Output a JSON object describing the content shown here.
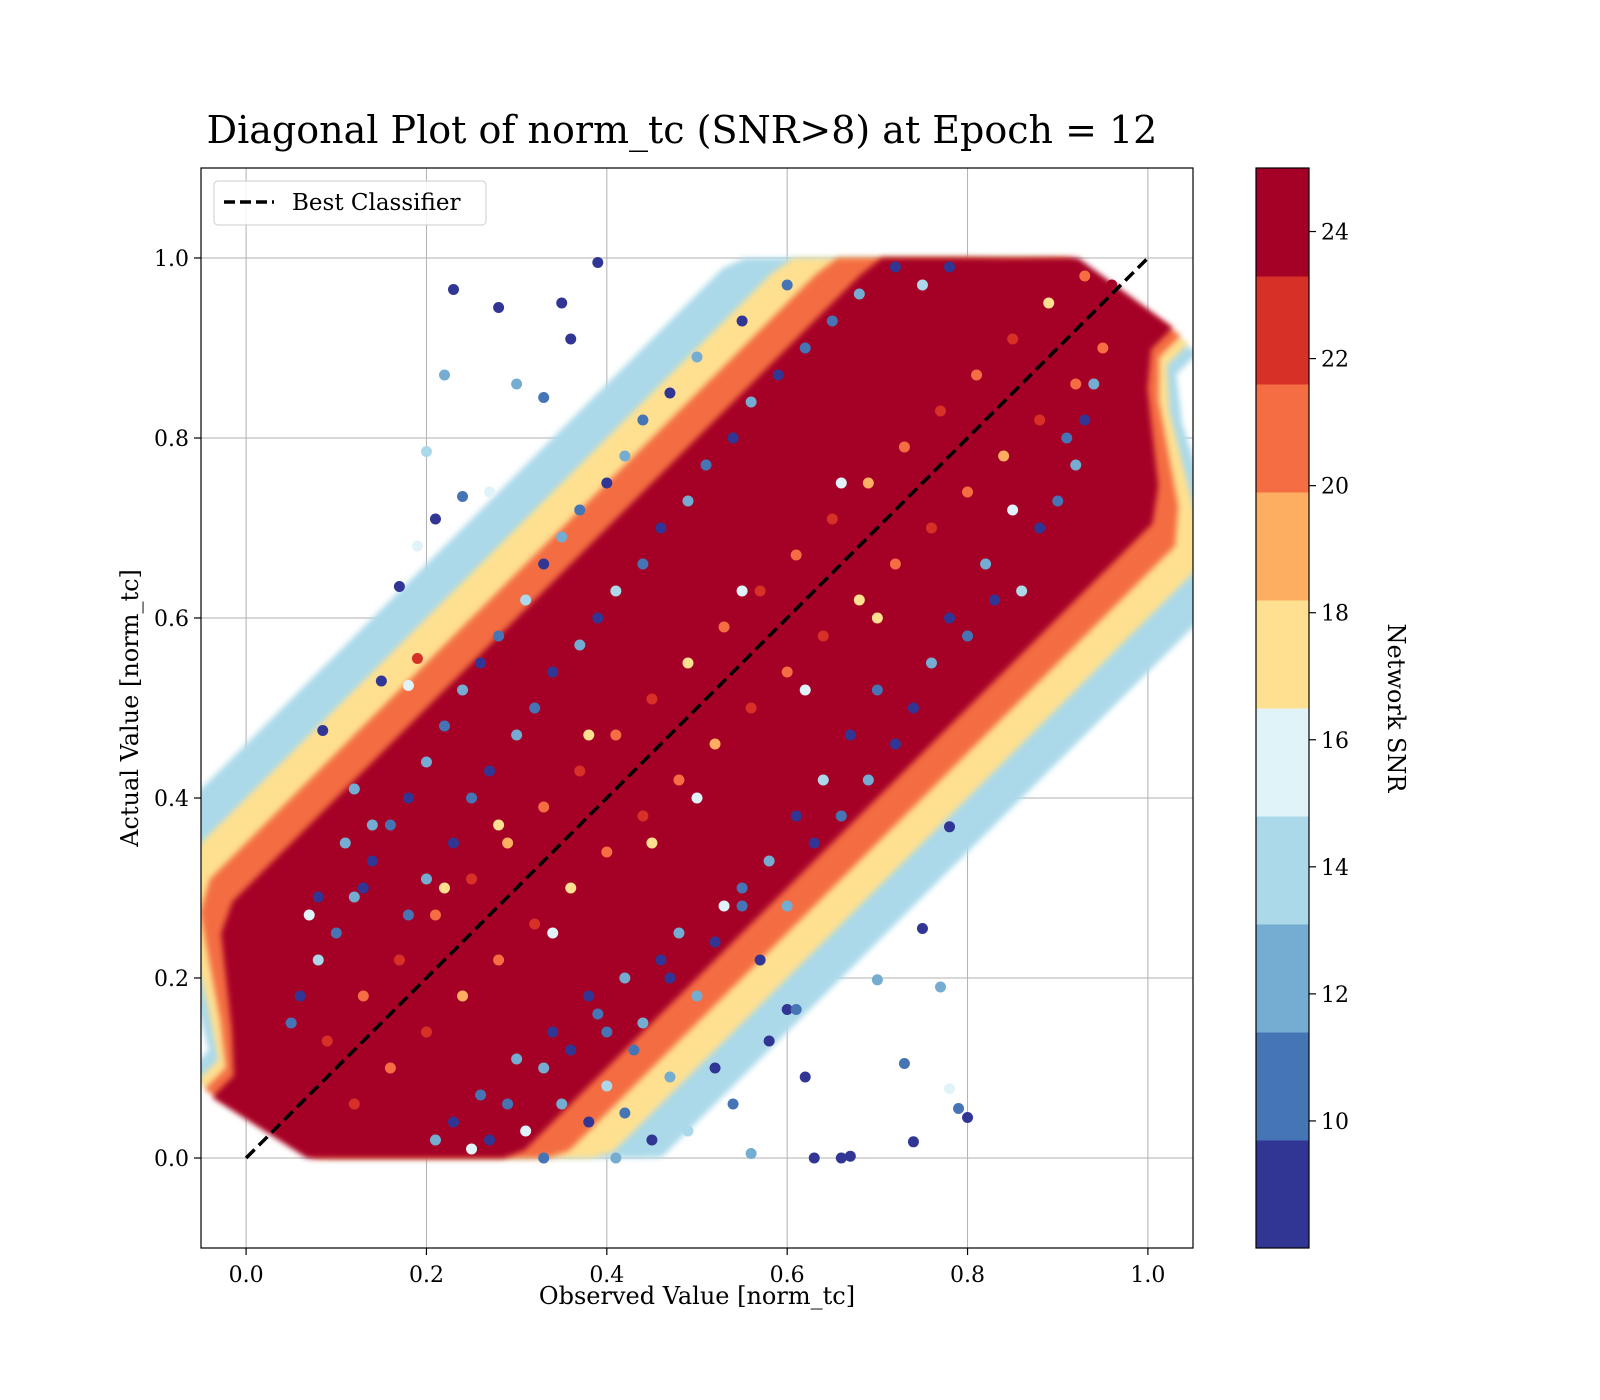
{
  "chart_data": {
    "type": "scatter",
    "title": "Diagonal Plot of norm_tc (SNR>8) at Epoch = 12",
    "xlabel": "Observed Value [norm_tc]",
    "ylabel": "Actual Value [norm_tc]",
    "xlim": [
      -0.05,
      1.05
    ],
    "ylim": [
      -0.1,
      1.1
    ],
    "xticks": [
      "0.0",
      "0.2",
      "0.4",
      "0.6",
      "0.8",
      "1.0"
    ],
    "xtick_values": [
      0.0,
      0.2,
      0.4,
      0.6,
      0.8,
      1.0
    ],
    "yticks": [
      "0.0",
      "0.2",
      "0.4",
      "0.6",
      "0.8",
      "1.0"
    ],
    "ytick_values": [
      0.0,
      0.2,
      0.4,
      0.6,
      0.8,
      1.0
    ],
    "grid": true,
    "legend": {
      "placement": "upper-left",
      "entries": [
        {
          "label": "Best Classifier",
          "style": "dashed",
          "color": "#000000"
        }
      ]
    },
    "reference_line": {
      "name": "Best Classifier",
      "x": [
        0.0,
        1.0
      ],
      "y": [
        0.0,
        1.0
      ],
      "style": "dashed",
      "color": "#000000"
    },
    "colorbar": {
      "label": "Network SNR",
      "range": [
        8,
        25
      ],
      "ticks": [
        "10",
        "12",
        "14",
        "16",
        "18",
        "20",
        "22",
        "24"
      ],
      "tick_values": [
        10,
        12,
        14,
        16,
        18,
        20,
        22,
        24
      ],
      "colors": [
        "#313695",
        "#4575b4",
        "#74add1",
        "#abd9e9",
        "#e0f3f8",
        "#fee090",
        "#fdae61",
        "#f46d43",
        "#d73027",
        "#a50026"
      ]
    },
    "points": [
      [
        0.05,
        0.05,
        25
      ],
      [
        0.08,
        0.1,
        25
      ],
      [
        0.12,
        0.14,
        25
      ],
      [
        0.16,
        0.18,
        25
      ],
      [
        0.2,
        0.21,
        25
      ],
      [
        0.24,
        0.25,
        25
      ],
      [
        0.28,
        0.3,
        25
      ],
      [
        0.32,
        0.33,
        25
      ],
      [
        0.36,
        0.37,
        25
      ],
      [
        0.4,
        0.41,
        25
      ],
      [
        0.44,
        0.45,
        25
      ],
      [
        0.48,
        0.5,
        25
      ],
      [
        0.52,
        0.53,
        25
      ],
      [
        0.56,
        0.57,
        25
      ],
      [
        0.6,
        0.61,
        25
      ],
      [
        0.64,
        0.65,
        25
      ],
      [
        0.68,
        0.69,
        25
      ],
      [
        0.72,
        0.74,
        25
      ],
      [
        0.76,
        0.77,
        25
      ],
      [
        0.8,
        0.81,
        25
      ],
      [
        0.84,
        0.85,
        25
      ],
      [
        0.88,
        0.89,
        25
      ],
      [
        0.92,
        0.93,
        25
      ],
      [
        0.96,
        0.97,
        25
      ],
      [
        0.085,
        0.475,
        8
      ],
      [
        0.23,
        0.965,
        8
      ],
      [
        0.28,
        0.945,
        8
      ],
      [
        0.35,
        0.95,
        8
      ],
      [
        0.39,
        0.995,
        8
      ],
      [
        0.36,
        0.91,
        8
      ],
      [
        0.22,
        0.87,
        13
      ],
      [
        0.3,
        0.86,
        12
      ],
      [
        0.33,
        0.845,
        10
      ],
      [
        0.2,
        0.785,
        14
      ],
      [
        0.19,
        0.68,
        15
      ],
      [
        0.21,
        0.71,
        8
      ],
      [
        0.24,
        0.735,
        10
      ],
      [
        0.27,
        0.74,
        15
      ],
      [
        0.17,
        0.635,
        8
      ],
      [
        0.19,
        0.555,
        22
      ],
      [
        0.15,
        0.53,
        8
      ],
      [
        0.18,
        0.525,
        15
      ],
      [
        0.11,
        0.35,
        12
      ],
      [
        0.13,
        0.3,
        8
      ],
      [
        0.07,
        0.27,
        15
      ],
      [
        0.08,
        0.29,
        8
      ],
      [
        0.12,
        0.41,
        12
      ],
      [
        0.14,
        0.37,
        13
      ],
      [
        0.75,
        0.255,
        8
      ],
      [
        0.78,
        0.368,
        8
      ],
      [
        0.79,
        0.055,
        10
      ],
      [
        0.8,
        0.045,
        8
      ],
      [
        0.78,
        0.077,
        16
      ],
      [
        0.77,
        0.19,
        12
      ],
      [
        0.7,
        0.198,
        13
      ],
      [
        0.73,
        0.105,
        10
      ],
      [
        0.74,
        0.018,
        8
      ],
      [
        0.67,
        0.002,
        8
      ],
      [
        0.66,
        0.0,
        8
      ],
      [
        0.6,
        0.165,
        8
      ],
      [
        0.61,
        0.165,
        10
      ],
      [
        0.63,
        0.0,
        8
      ],
      [
        0.56,
        0.005,
        12
      ],
      [
        0.62,
        0.09,
        8
      ],
      [
        0.58,
        0.13,
        8
      ],
      [
        0.55,
        0.28,
        10
      ],
      [
        0.52,
        0.24,
        8
      ],
      [
        0.5,
        0.18,
        12
      ],
      [
        0.47,
        0.2,
        8
      ],
      [
        0.44,
        0.15,
        13
      ],
      [
        0.43,
        0.12,
        10
      ],
      [
        0.4,
        0.08,
        14
      ],
      [
        0.38,
        0.04,
        8
      ],
      [
        0.35,
        0.06,
        12
      ],
      [
        0.33,
        0.1,
        13
      ],
      [
        0.31,
        0.03,
        15
      ],
      [
        0.29,
        0.06,
        10
      ],
      [
        0.27,
        0.02,
        8
      ],
      [
        0.42,
        0.05,
        11
      ],
      [
        0.45,
        0.02,
        9
      ],
      [
        0.47,
        0.09,
        12
      ],
      [
        0.52,
        0.1,
        8
      ],
      [
        0.54,
        0.06,
        10
      ],
      [
        0.49,
        0.03,
        14
      ],
      [
        0.36,
        0.12,
        9
      ],
      [
        0.4,
        0.14,
        11
      ],
      [
        0.38,
        0.18,
        8
      ],
      [
        0.48,
        0.25,
        12
      ],
      [
        0.57,
        0.22,
        9
      ],
      [
        0.6,
        0.28,
        13
      ],
      [
        0.63,
        0.35,
        8
      ],
      [
        0.66,
        0.38,
        10
      ],
      [
        0.69,
        0.42,
        12
      ],
      [
        0.72,
        0.46,
        9
      ],
      [
        0.74,
        0.5,
        8
      ],
      [
        0.76,
        0.55,
        13
      ],
      [
        0.8,
        0.58,
        10
      ],
      [
        0.83,
        0.62,
        9
      ],
      [
        0.86,
        0.63,
        14
      ],
      [
        0.88,
        0.7,
        8
      ],
      [
        0.9,
        0.73,
        11
      ],
      [
        0.92,
        0.77,
        12
      ],
      [
        0.93,
        0.82,
        9
      ],
      [
        0.94,
        0.86,
        13
      ],
      [
        0.91,
        0.8,
        10
      ],
      [
        0.85,
        0.72,
        15
      ],
      [
        0.82,
        0.66,
        12
      ],
      [
        0.78,
        0.6,
        9
      ],
      [
        0.7,
        0.52,
        11
      ],
      [
        0.67,
        0.47,
        8
      ],
      [
        0.64,
        0.42,
        14
      ],
      [
        0.61,
        0.38,
        9
      ],
      [
        0.58,
        0.33,
        12
      ],
      [
        0.55,
        0.3,
        10
      ],
      [
        0.53,
        0.28,
        16
      ],
      [
        0.46,
        0.22,
        9
      ],
      [
        0.42,
        0.2,
        12
      ],
      [
        0.39,
        0.16,
        10
      ],
      [
        0.34,
        0.14,
        8
      ],
      [
        0.3,
        0.11,
        13
      ],
      [
        0.26,
        0.07,
        11
      ],
      [
        0.23,
        0.04,
        9
      ],
      [
        0.21,
        0.02,
        12
      ],
      [
        0.25,
        0.01,
        15
      ],
      [
        0.33,
        0.0,
        10
      ],
      [
        0.41,
        0.0,
        12
      ],
      [
        0.18,
        0.27,
        10
      ],
      [
        0.2,
        0.31,
        12
      ],
      [
        0.23,
        0.35,
        9
      ],
      [
        0.25,
        0.4,
        11
      ],
      [
        0.27,
        0.43,
        8
      ],
      [
        0.3,
        0.47,
        13
      ],
      [
        0.32,
        0.5,
        10
      ],
      [
        0.34,
        0.54,
        9
      ],
      [
        0.37,
        0.57,
        12
      ],
      [
        0.39,
        0.6,
        8
      ],
      [
        0.41,
        0.63,
        14
      ],
      [
        0.44,
        0.66,
        11
      ],
      [
        0.46,
        0.7,
        9
      ],
      [
        0.49,
        0.73,
        12
      ],
      [
        0.51,
        0.77,
        10
      ],
      [
        0.54,
        0.8,
        8
      ],
      [
        0.56,
        0.84,
        13
      ],
      [
        0.59,
        0.87,
        9
      ],
      [
        0.62,
        0.9,
        11
      ],
      [
        0.65,
        0.93,
        10
      ],
      [
        0.68,
        0.96,
        12
      ],
      [
        0.72,
        0.99,
        8
      ],
      [
        0.75,
        0.97,
        14
      ],
      [
        0.78,
        0.99,
        9
      ],
      [
        0.6,
        0.97,
        10
      ],
      [
        0.55,
        0.93,
        8
      ],
      [
        0.5,
        0.89,
        12
      ],
      [
        0.47,
        0.85,
        9
      ],
      [
        0.44,
        0.82,
        11
      ],
      [
        0.42,
        0.78,
        13
      ],
      [
        0.4,
        0.75,
        8
      ],
      [
        0.37,
        0.72,
        10
      ],
      [
        0.35,
        0.69,
        12
      ],
      [
        0.33,
        0.66,
        9
      ],
      [
        0.31,
        0.62,
        14
      ],
      [
        0.28,
        0.58,
        11
      ],
      [
        0.26,
        0.55,
        8
      ],
      [
        0.24,
        0.52,
        12
      ],
      [
        0.22,
        0.48,
        10
      ],
      [
        0.2,
        0.44,
        13
      ],
      [
        0.18,
        0.4,
        9
      ],
      [
        0.16,
        0.37,
        11
      ],
      [
        0.14,
        0.33,
        8
      ],
      [
        0.12,
        0.29,
        12
      ],
      [
        0.1,
        0.25,
        10
      ],
      [
        0.08,
        0.22,
        14
      ],
      [
        0.06,
        0.18,
        9
      ],
      [
        0.05,
        0.15,
        11
      ],
      [
        0.09,
        0.13,
        22
      ],
      [
        0.13,
        0.18,
        21
      ],
      [
        0.17,
        0.22,
        23
      ],
      [
        0.21,
        0.27,
        20
      ],
      [
        0.25,
        0.31,
        22
      ],
      [
        0.29,
        0.35,
        19
      ],
      [
        0.33,
        0.39,
        21
      ],
      [
        0.37,
        0.43,
        23
      ],
      [
        0.41,
        0.47,
        20
      ],
      [
        0.45,
        0.51,
        22
      ],
      [
        0.49,
        0.55,
        18
      ],
      [
        0.53,
        0.59,
        21
      ],
      [
        0.57,
        0.63,
        23
      ],
      [
        0.61,
        0.67,
        20
      ],
      [
        0.65,
        0.71,
        22
      ],
      [
        0.69,
        0.75,
        19
      ],
      [
        0.73,
        0.79,
        21
      ],
      [
        0.77,
        0.83,
        23
      ],
      [
        0.81,
        0.87,
        20
      ],
      [
        0.85,
        0.91,
        22
      ],
      [
        0.89,
        0.95,
        18
      ],
      [
        0.93,
        0.98,
        21
      ],
      [
        0.12,
        0.06,
        22
      ],
      [
        0.16,
        0.1,
        20
      ],
      [
        0.2,
        0.14,
        23
      ],
      [
        0.24,
        0.18,
        19
      ],
      [
        0.28,
        0.22,
        21
      ],
      [
        0.32,
        0.26,
        22
      ],
      [
        0.36,
        0.3,
        18
      ],
      [
        0.4,
        0.34,
        20
      ],
      [
        0.44,
        0.38,
        23
      ],
      [
        0.48,
        0.42,
        21
      ],
      [
        0.52,
        0.46,
        19
      ],
      [
        0.56,
        0.5,
        22
      ],
      [
        0.6,
        0.54,
        20
      ],
      [
        0.64,
        0.58,
        23
      ],
      [
        0.68,
        0.62,
        18
      ],
      [
        0.72,
        0.66,
        21
      ],
      [
        0.76,
        0.7,
        22
      ],
      [
        0.8,
        0.74,
        20
      ],
      [
        0.84,
        0.78,
        19
      ],
      [
        0.88,
        0.82,
        23
      ],
      [
        0.92,
        0.86,
        21
      ],
      [
        0.95,
        0.9,
        20
      ],
      [
        0.45,
        0.35,
        17
      ],
      [
        0.5,
        0.4,
        16
      ],
      [
        0.38,
        0.47,
        17
      ],
      [
        0.55,
        0.63,
        16
      ],
      [
        0.28,
        0.37,
        17
      ],
      [
        0.62,
        0.52,
        16
      ],
      [
        0.7,
        0.6,
        17
      ],
      [
        0.34,
        0.25,
        16
      ],
      [
        0.22,
        0.3,
        17
      ],
      [
        0.66,
        0.75,
        16
      ]
    ]
  }
}
